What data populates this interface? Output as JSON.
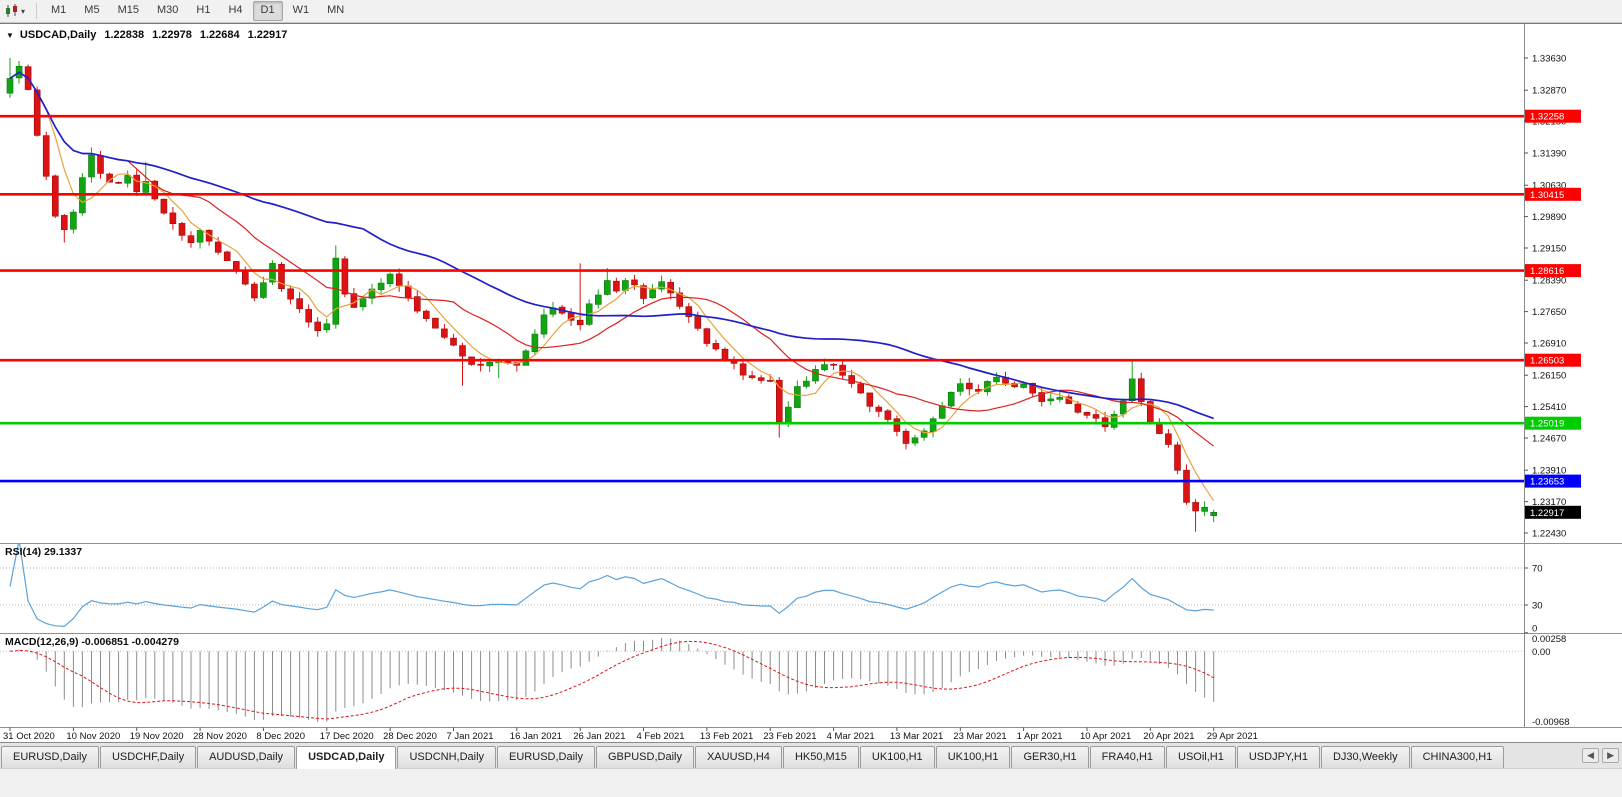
{
  "toolbar": {
    "timeframes": [
      "M1",
      "M5",
      "M15",
      "M30",
      "H1",
      "H4",
      "D1",
      "W1",
      "MN"
    ],
    "active_timeframe": "D1",
    "caret": "▾"
  },
  "chart": {
    "marker": "▼",
    "symbol_label": "USDCAD,Daily",
    "ohlc": {
      "open": "1.22838",
      "high": "1.22978",
      "low": "1.22684",
      "close": "1.22917"
    }
  },
  "indicators": {
    "rsi": {
      "label": "RSI(14) 29.1337",
      "period": 14,
      "value": 29.1337,
      "levels": [
        70,
        30
      ],
      "axis_values": [
        70,
        30,
        0
      ],
      "axis_labels": [
        "70",
        "30",
        "0"
      ],
      "color": "#5aa2dc"
    },
    "macd": {
      "label": "MACD(12,26,9) -0.006851 -0.004279",
      "params": "12,26,9",
      "main": -0.006851,
      "signal": -0.004279,
      "axis_labels": [
        "0.00258",
        "0.00",
        "-0.00968"
      ],
      "scale_max": 0.00258,
      "scale_min": -0.00968
    }
  },
  "tabs": {
    "list": [
      "EURUSD,Daily",
      "USDCHF,Daily",
      "AUDUSD,Daily",
      "USDCAD,Daily",
      "USDCNH,Daily",
      "EURUSD,Daily",
      "GBPUSD,Daily",
      "XAUUSD,H4",
      "HK50,M15",
      "UK100,H1",
      "UK100,H1",
      "GER30,H1",
      "FRA40,H1",
      "USOil,H1",
      "USDJPY,H1",
      "DJ30,Weekly",
      "CHINA300,H1"
    ],
    "active_index": 3,
    "scroll_left": "◀",
    "scroll_right": "▶"
  },
  "colors": {
    "candle_up": "#12a512",
    "candle_up_edge": "#0b7a0b",
    "candle_down": "#dd1212",
    "candle_down_edge": "#9d0b0b",
    "macd_histogram": "#8c8c8c",
    "macd_signal": "#e01515",
    "hline_red": "#ff0000",
    "hline_green": "#00cc00",
    "hline_blue": "#0000ff",
    "axis_text": "#111111"
  },
  "chart_data": {
    "type": "candlestick",
    "symbol": "USDCAD",
    "timeframe": "Daily",
    "candle_count": 134,
    "ohlc_current": [
      1.22838,
      1.22978,
      1.22684,
      1.22917
    ],
    "first_open": 1.328,
    "price_range_visible": [
      1.2224,
      1.3436
    ],
    "price_ticks": [
      1.3363,
      1.3287,
      1.3215,
      1.3139,
      1.3063,
      1.2989,
      1.2915,
      1.2839,
      1.2765,
      1.2691,
      1.2615,
      1.2541,
      1.2467,
      1.2391,
      1.2317,
      1.2243
    ],
    "date_labels": [
      "31 Oct 2020",
      "10 Nov 2020",
      "19 Nov 2020",
      "28 Nov 2020",
      "8 Dec 2020",
      "17 Dec 2020",
      "28 Dec 2020",
      "7 Jan 2021",
      "16 Jan 2021",
      "26 Jan 2021",
      "4 Feb 2021",
      "13 Feb 2021",
      "23 Feb 2021",
      "4 Mar 2021",
      "13 Mar 2021",
      "23 Mar 2021",
      "1 Apr 2021",
      "10 Apr 2021",
      "20 Apr 2021",
      "29 Apr 2021"
    ],
    "hlines": [
      {
        "value": 1.32258,
        "label": "1.32258",
        "color": "#ff0000"
      },
      {
        "value": 1.30415,
        "label": "1.30415",
        "color": "#ff0000"
      },
      {
        "value": 1.28616,
        "label": "1.28616",
        "color": "#ff0000"
      },
      {
        "value": 1.26503,
        "label": "1.26503",
        "color": "#ff0000"
      },
      {
        "value": 1.25019,
        "label": "1.25019",
        "color": "#00cc00"
      },
      {
        "value": 1.23653,
        "label": "1.23653",
        "color": "#0000ff"
      }
    ],
    "current_price": {
      "value": 1.22917,
      "label": "1.22917",
      "color": "#000000"
    },
    "rsi_period": 14,
    "moving_averages": [
      {
        "name": "MA-fast",
        "period": 5,
        "color": "#e8a33d"
      },
      {
        "name": "MA-mid",
        "period": 14,
        "color": "#e02020"
      },
      {
        "name": "MA-slow",
        "period": 40,
        "color": "#2020c8"
      }
    ],
    "close_waypoints": [
      [
        0,
        1.3315
      ],
      [
        1,
        1.3338
      ],
      [
        2,
        1.3285
      ],
      [
        3,
        1.318
      ],
      [
        4,
        1.308
      ],
      [
        5,
        1.2995
      ],
      [
        6,
        1.2962
      ],
      [
        7,
        1.3005
      ],
      [
        8,
        1.3075
      ],
      [
        9,
        1.3128
      ],
      [
        10,
        1.309
      ],
      [
        11,
        1.3065
      ],
      [
        13,
        1.3085
      ],
      [
        14,
        1.3042
      ],
      [
        15,
        1.3072
      ],
      [
        16,
        1.303
      ],
      [
        18,
        1.2972
      ],
      [
        20,
        1.293
      ],
      [
        21,
        1.2958
      ],
      [
        23,
        1.2905
      ],
      [
        25,
        1.2862
      ],
      [
        27,
        1.28
      ],
      [
        29,
        1.2875
      ],
      [
        30,
        1.2822
      ],
      [
        32,
        1.2768
      ],
      [
        34,
        1.2715
      ],
      [
        35,
        1.2742
      ],
      [
        36,
        1.2885
      ],
      [
        37,
        1.2805
      ],
      [
        38,
        1.2772
      ],
      [
        40,
        1.2815
      ],
      [
        42,
        1.2852
      ],
      [
        44,
        1.2795
      ],
      [
        46,
        1.2748
      ],
      [
        48,
        1.2705
      ],
      [
        50,
        1.2655
      ],
      [
        52,
        1.2636
      ],
      [
        54,
        1.2652
      ],
      [
        56,
        1.2642
      ],
      [
        58,
        1.2705
      ],
      [
        59,
        1.2758
      ],
      [
        60,
        1.2775
      ],
      [
        62,
        1.2738
      ],
      [
        63,
        1.2732
      ],
      [
        64,
        1.278
      ],
      [
        66,
        1.284
      ],
      [
        67,
        1.2812
      ],
      [
        68,
        1.2842
      ],
      [
        70,
        1.2802
      ],
      [
        72,
        1.2835
      ],
      [
        74,
        1.2782
      ],
      [
        76,
        1.2722
      ],
      [
        77,
        1.2692
      ],
      [
        79,
        1.2656
      ],
      [
        81,
        1.2622
      ],
      [
        84,
        1.2602
      ],
      [
        85,
        1.2505
      ],
      [
        86,
        1.2538
      ],
      [
        87,
        1.259
      ],
      [
        89,
        1.2625
      ],
      [
        91,
        1.2642
      ],
      [
        93,
        1.2592
      ],
      [
        95,
        1.2548
      ],
      [
        97,
        1.2512
      ],
      [
        99,
        1.2455
      ],
      [
        101,
        1.2478
      ],
      [
        103,
        1.2545
      ],
      [
        105,
        1.2592
      ],
      [
        107,
        1.2576
      ],
      [
        109,
        1.2612
      ],
      [
        111,
        1.2582
      ],
      [
        112,
        1.2592
      ],
      [
        114,
        1.2556
      ],
      [
        116,
        1.2566
      ],
      [
        118,
        1.2532
      ],
      [
        120,
        1.2512
      ],
      [
        121,
        1.2492
      ],
      [
        123,
        1.2552
      ],
      [
        124,
        1.2612
      ],
      [
        125,
        1.2548
      ],
      [
        126,
        1.2498
      ],
      [
        127,
        1.2482
      ],
      [
        128,
        1.2455
      ],
      [
        129,
        1.2385
      ],
      [
        130,
        1.2312
      ],
      [
        131,
        1.2288
      ],
      [
        132,
        1.2303
      ],
      [
        133,
        1.22917
      ]
    ],
    "spikes": [
      {
        "i": 0,
        "high": 1.3363
      },
      {
        "i": 1,
        "high": 1.3356
      },
      {
        "i": 6,
        "low": 1.2928
      },
      {
        "i": 9,
        "high": 1.3152
      },
      {
        "i": 15,
        "high": 1.3118
      },
      {
        "i": 36,
        "high": 1.2921
      },
      {
        "i": 50,
        "low": 1.259
      },
      {
        "i": 54,
        "low": 1.2608
      },
      {
        "i": 63,
        "high": 1.2879
      },
      {
        "i": 66,
        "high": 1.2868
      },
      {
        "i": 85,
        "low": 1.2468
      },
      {
        "i": 99,
        "low": 1.244
      },
      {
        "i": 124,
        "high": 1.2653
      },
      {
        "i": 131,
        "low": 1.2246
      }
    ]
  }
}
